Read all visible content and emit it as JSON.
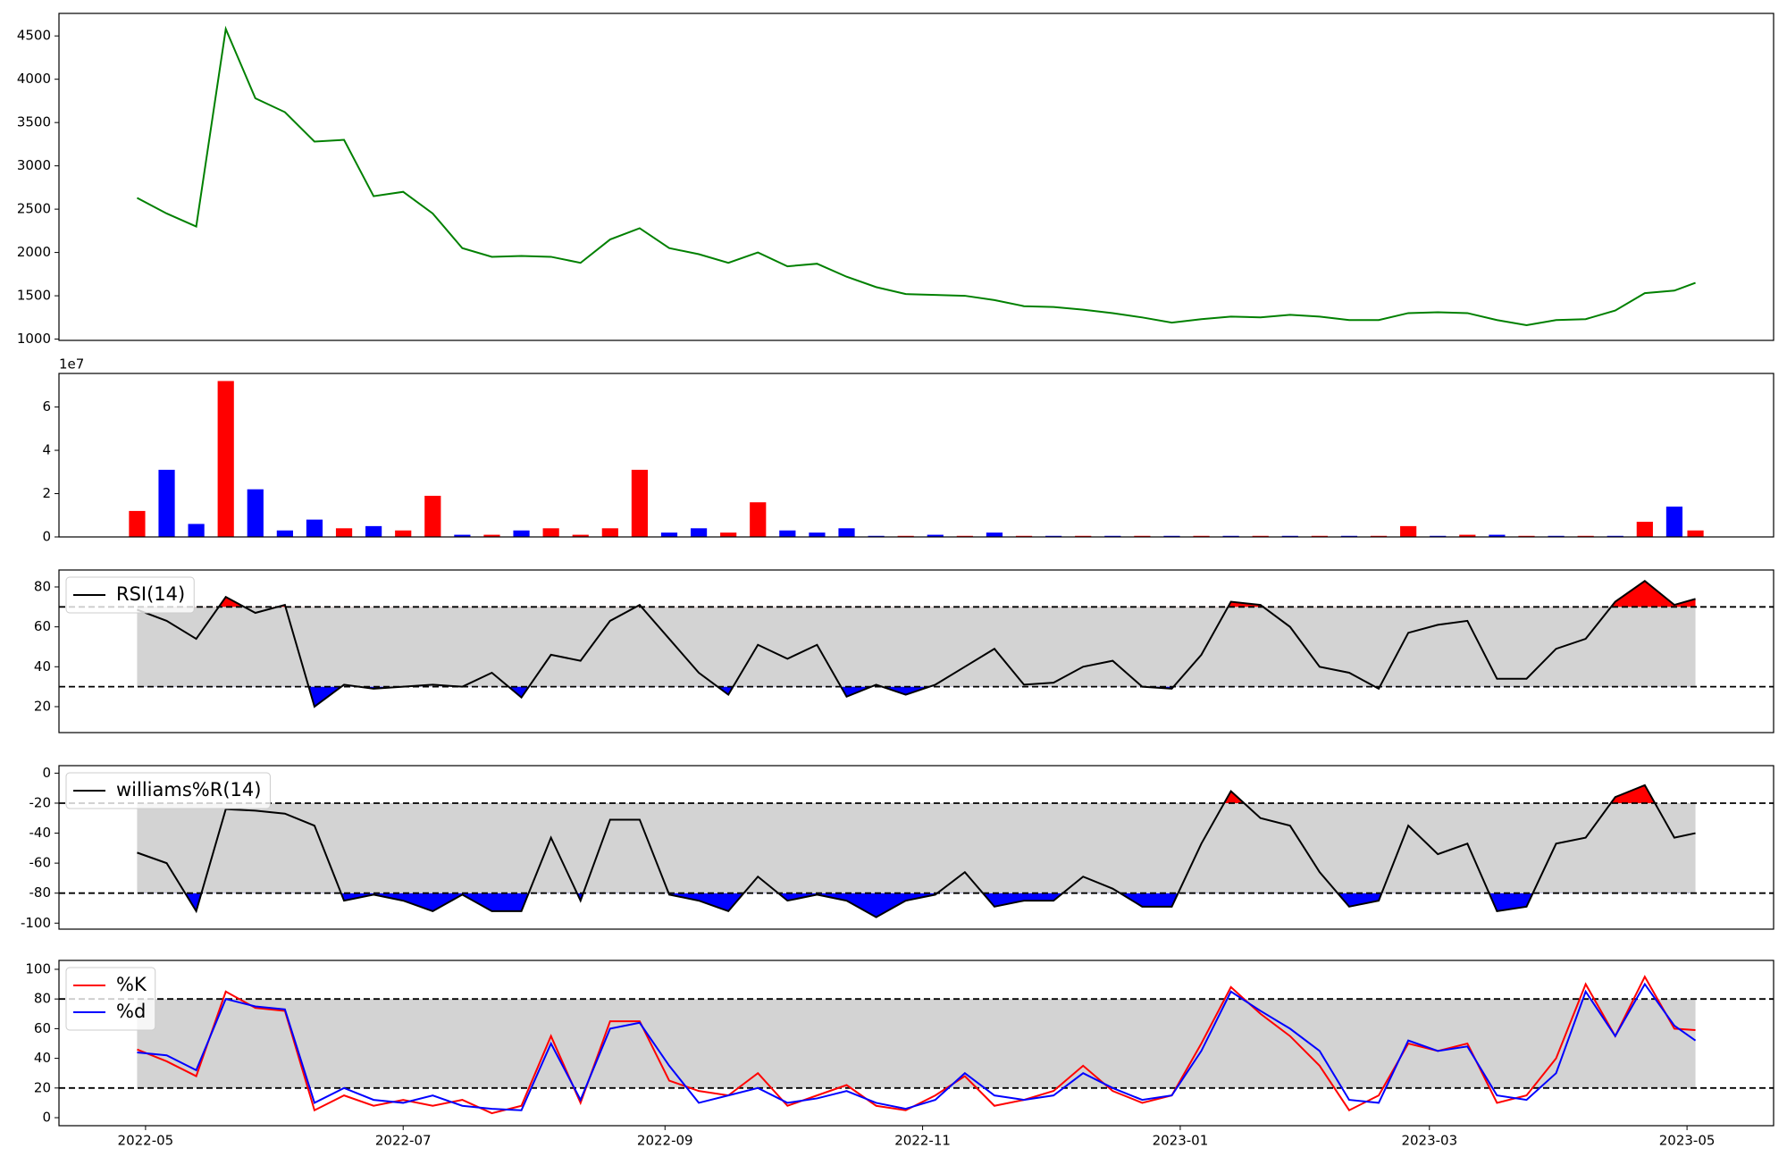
{
  "chart_data": [
    {
      "type": "line",
      "xlim": [
        19092.5,
        19498.5
      ],
      "ylim": [
        985,
        4760
      ],
      "yticks": [
        1000,
        1500,
        2000,
        2500,
        3000,
        3500,
        4000,
        4500
      ],
      "x": [
        19111,
        19118,
        19125,
        19132,
        19139,
        19146,
        19153,
        19160,
        19167,
        19174,
        19181,
        19188,
        19195,
        19202,
        19209,
        19216,
        19223,
        19230,
        19237,
        19244,
        19251,
        19258,
        19265,
        19272,
        19279,
        19286,
        19293,
        19300,
        19307,
        19314,
        19321,
        19328,
        19335,
        19342,
        19349,
        19356,
        19363,
        19370,
        19377,
        19384,
        19391,
        19398,
        19405,
        19412,
        19419,
        19426,
        19433,
        19440,
        19447,
        19454,
        19461,
        19468,
        19475,
        19480
      ],
      "series": [
        {
          "color": "green",
          "values": [
            2630,
            2450,
            2300,
            4580,
            3780,
            3620,
            3280,
            3300,
            2650,
            2700,
            2450,
            2050,
            1950,
            1960,
            1950,
            1880,
            2150,
            2280,
            2050,
            1980,
            1880,
            2000,
            1840,
            1870,
            1720,
            1600,
            1520,
            1510,
            1500,
            1450,
            1380,
            1370,
            1340,
            1300,
            1250,
            1190,
            1230,
            1260,
            1250,
            1280,
            1260,
            1220,
            1220,
            1300,
            1310,
            1300,
            1220,
            1160,
            1220,
            1230,
            1330,
            1530,
            1560,
            1650
          ]
        }
      ]
    },
    {
      "type": "bar",
      "xlim": [
        19092.5,
        19498.5
      ],
      "ylim": [
        0,
        7.55
      ],
      "yticks": [
        0,
        2,
        4,
        6
      ],
      "y_offset_label": "1e7",
      "x": [
        19111,
        19118,
        19125,
        19132,
        19139,
        19146,
        19153,
        19160,
        19167,
        19174,
        19181,
        19188,
        19195,
        19202,
        19209,
        19216,
        19223,
        19230,
        19237,
        19244,
        19251,
        19258,
        19265,
        19272,
        19279,
        19286,
        19293,
        19300,
        19307,
        19314,
        19321,
        19328,
        19335,
        19342,
        19349,
        19356,
        19363,
        19370,
        19377,
        19384,
        19391,
        19398,
        19405,
        19412,
        19419,
        19426,
        19433,
        19440,
        19447,
        19454,
        19461,
        19468,
        19475,
        19480
      ],
      "series": [
        {
          "values": [
            1.2,
            3.1,
            0.6,
            7.2,
            2.2,
            0.3,
            0.8,
            0.4,
            0.5,
            0.3,
            1.9,
            0.1,
            0.1,
            0.3,
            0.4,
            0.1,
            0.4,
            3.1,
            0.2,
            0.4,
            0.2,
            1.6,
            0.3,
            0.2,
            0.4,
            0.05,
            0.05,
            0.1,
            0.05,
            0.2,
            0.05,
            0.05,
            0.05,
            0.05,
            0.05,
            0.05,
            0.05,
            0.05,
            0.05,
            0.05,
            0.05,
            0.05,
            0.05,
            0.5,
            0.05,
            0.1,
            0.1,
            0.05,
            0.05,
            0.05,
            0.05,
            0.7,
            1.4,
            0.3
          ],
          "colors": [
            "red",
            "blue",
            "blue",
            "red",
            "blue",
            "blue",
            "blue",
            "red",
            "blue",
            "red",
            "red",
            "blue",
            "red",
            "blue",
            "red",
            "red",
            "red",
            "red",
            "blue",
            "blue",
            "red",
            "red",
            "blue",
            "blue",
            "blue",
            "blue",
            "red",
            "blue",
            "red",
            "blue",
            "red",
            "blue",
            "red",
            "blue",
            "red",
            "blue",
            "red",
            "blue",
            "red",
            "blue",
            "red",
            "blue",
            "red",
            "red",
            "blue",
            "red",
            "blue",
            "red",
            "blue",
            "red",
            "blue",
            "red",
            "blue",
            "red"
          ]
        }
      ]
    },
    {
      "type": "line",
      "xlim": [
        19092.5,
        19498.5
      ],
      "ylim": [
        7,
        88.5
      ],
      "yticks": [
        20,
        40,
        60,
        80
      ],
      "hlines": [
        30,
        70
      ],
      "band_color": "lightgray",
      "above_color": "red",
      "below_color": "blue",
      "legend": "upper left",
      "x": [
        19111,
        19118,
        19125,
        19132,
        19139,
        19146,
        19153,
        19160,
        19167,
        19174,
        19181,
        19188,
        19195,
        19202,
        19209,
        19216,
        19223,
        19230,
        19237,
        19244,
        19251,
        19258,
        19265,
        19272,
        19279,
        19286,
        19293,
        19300,
        19307,
        19314,
        19321,
        19328,
        19335,
        19342,
        19349,
        19356,
        19363,
        19370,
        19377,
        19384,
        19391,
        19398,
        19405,
        19412,
        19419,
        19426,
        19433,
        19440,
        19447,
        19454,
        19461,
        19468,
        19475,
        19480
      ],
      "series": [
        {
          "name": "RSI(14)",
          "color": "black",
          "values": [
            68.6,
            63,
            54,
            75,
            67,
            71,
            20,
            31,
            29,
            30,
            31,
            30,
            37,
            24.6,
            46,
            43,
            63,
            71,
            54,
            37,
            26,
            51,
            44,
            51,
            25,
            31,
            26,
            31,
            40,
            49,
            31,
            32,
            40,
            43,
            30,
            29,
            46,
            72.6,
            71,
            60,
            40,
            37,
            29,
            57,
            61,
            63,
            34,
            34,
            49,
            54,
            72.6,
            83,
            71,
            74
          ]
        }
      ]
    },
    {
      "type": "line",
      "xlim": [
        19092.5,
        19498.5
      ],
      "ylim": [
        -104,
        5
      ],
      "yticks": [
        0,
        -20,
        -40,
        -60,
        -80,
        -100
      ],
      "hlines": [
        -80,
        -20
      ],
      "band_color": "lightgray",
      "above_color": "red",
      "below_color": "blue",
      "legend": "upper left",
      "x": [
        19111,
        19118,
        19125,
        19132,
        19139,
        19146,
        19153,
        19160,
        19167,
        19174,
        19181,
        19188,
        19195,
        19202,
        19209,
        19216,
        19223,
        19230,
        19237,
        19244,
        19251,
        19258,
        19265,
        19272,
        19279,
        19286,
        19293,
        19300,
        19307,
        19314,
        19321,
        19328,
        19335,
        19342,
        19349,
        19356,
        19363,
        19370,
        19377,
        19384,
        19391,
        19398,
        19405,
        19412,
        19419,
        19426,
        19433,
        19440,
        19447,
        19454,
        19461,
        19468,
        19475,
        19480
      ],
      "series": [
        {
          "name": "williams%R(14)",
          "color": "black",
          "values": [
            -53,
            -60,
            -92,
            -24,
            -25,
            -27,
            -35,
            -85,
            -81,
            -85,
            -92,
            -81,
            -92,
            -92,
            -43,
            -85,
            -31,
            -31,
            -81,
            -85,
            -92,
            -69,
            -85,
            -81,
            -85,
            -96,
            -85,
            -81,
            -66,
            -89,
            -85,
            -85,
            -69,
            -77,
            -89,
            -89,
            -47,
            -12,
            -30,
            -35,
            -66,
            -89,
            -85,
            -35,
            -54,
            -47,
            -92,
            -89,
            -47,
            -43,
            -16,
            -8,
            -43,
            -40
          ]
        }
      ]
    },
    {
      "type": "line",
      "xlim": [
        19092.5,
        19498.5
      ],
      "ylim": [
        -5.4,
        106
      ],
      "yticks": [
        0,
        20,
        40,
        60,
        80,
        100
      ],
      "hlines": [
        20,
        80
      ],
      "band_color": "lightgray",
      "legend": "upper left",
      "xticks": [
        {
          "value": 19113,
          "label": "2022-05"
        },
        {
          "value": 19174,
          "label": "2022-07"
        },
        {
          "value": 19236,
          "label": "2022-09"
        },
        {
          "value": 19297,
          "label": "2022-11"
        },
        {
          "value": 19358,
          "label": "2023-01"
        },
        {
          "value": 19417,
          "label": "2023-03"
        },
        {
          "value": 19478,
          "label": "2023-05"
        }
      ],
      "x": [
        19111,
        19118,
        19125,
        19132,
        19139,
        19146,
        19153,
        19160,
        19167,
        19174,
        19181,
        19188,
        19195,
        19202,
        19209,
        19216,
        19223,
        19230,
        19237,
        19244,
        19251,
        19258,
        19265,
        19272,
        19279,
        19286,
        19293,
        19300,
        19307,
        19314,
        19321,
        19328,
        19335,
        19342,
        19349,
        19356,
        19363,
        19370,
        19377,
        19384,
        19391,
        19398,
        19405,
        19412,
        19419,
        19426,
        19433,
        19440,
        19447,
        19454,
        19461,
        19468,
        19475,
        19480
      ],
      "series": [
        {
          "name": "%K",
          "color": "red",
          "values": [
            46,
            38,
            28,
            85,
            74,
            72,
            5,
            15,
            8,
            12,
            8,
            12,
            3,
            8,
            55,
            10,
            65,
            65,
            25,
            18,
            15,
            30,
            8,
            15,
            22,
            8,
            5,
            15,
            28,
            8,
            12,
            18,
            35,
            18,
            10,
            15,
            50,
            88,
            70,
            55,
            35,
            5,
            15,
            50,
            45,
            50,
            10,
            15,
            40,
            90,
            55,
            95,
            60,
            59
          ]
        },
        {
          "name": "%d",
          "color": "blue",
          "values": [
            44,
            42,
            32,
            80,
            75,
            73,
            10,
            20,
            12,
            10,
            15,
            8,
            6,
            5,
            50,
            12,
            60,
            64,
            35,
            10,
            15,
            20,
            10,
            13,
            18,
            10,
            6,
            12,
            30,
            15,
            12,
            15,
            30,
            20,
            12,
            15,
            45,
            85,
            72,
            60,
            45,
            12,
            10,
            52,
            45,
            48,
            15,
            12,
            30,
            85,
            55,
            90,
            62,
            52
          ]
        }
      ]
    }
  ]
}
